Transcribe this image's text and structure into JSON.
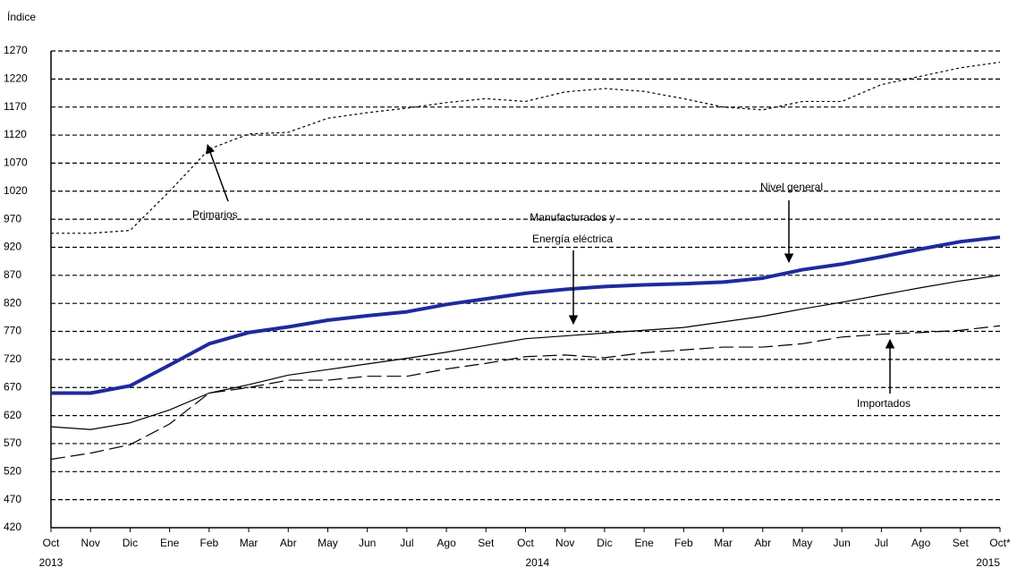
{
  "chart_data": {
    "type": "line",
    "y_label": "Índice",
    "categories": [
      "Oct",
      "Nov",
      "Dic",
      "Ene",
      "Feb",
      "Mar",
      "Abr",
      "May",
      "Jun",
      "Jul",
      "Ago",
      "Set",
      "Oct",
      "Nov",
      "Dic",
      "Ene",
      "Feb",
      "Mar",
      "Abr",
      "May",
      "Jun",
      "Jul",
      "Ago",
      "Set",
      "Oct*"
    ],
    "category_years": [
      "2013",
      null,
      null,
      null,
      null,
      null,
      null,
      null,
      null,
      null,
      null,
      null,
      "2014",
      null,
      null,
      null,
      null,
      null,
      null,
      null,
      null,
      null,
      null,
      null,
      "2015"
    ],
    "ylim": [
      420,
      1270
    ],
    "yticks": [
      420,
      470,
      520,
      570,
      620,
      670,
      720,
      770,
      820,
      870,
      920,
      970,
      1020,
      1070,
      1120,
      1170,
      1220,
      1270
    ],
    "grid": true,
    "series": [
      {
        "color": "#000000",
        "style": "dotted",
        "values": [
          945,
          945,
          950,
          1020,
          1095,
          1122,
          1125,
          1150,
          1160,
          1168,
          1178,
          1185,
          1180,
          1197,
          1203,
          1198,
          1185,
          1170,
          1165,
          1180,
          1180,
          1210,
          1225,
          1240,
          1250
        ]
      },
      {
        "color": "#1f2a9c",
        "style": "thick",
        "values": [
          660,
          660,
          673,
          710,
          748,
          768,
          778,
          790,
          798,
          805,
          818,
          828,
          838,
          845,
          850,
          853,
          855,
          858,
          865,
          880,
          890,
          903,
          917,
          930,
          938
        ]
      },
      {
        "color": "#000000",
        "style": "solid",
        "values": [
          600,
          595,
          607,
          630,
          660,
          675,
          692,
          702,
          712,
          722,
          733,
          745,
          757,
          762,
          767,
          772,
          777,
          787,
          797,
          810,
          822,
          835,
          848,
          860,
          870
        ]
      },
      {
        "color": "#000000",
        "style": "dashed",
        "values": [
          542,
          553,
          568,
          605,
          660,
          670,
          683,
          683,
          690,
          690,
          703,
          713,
          725,
          728,
          723,
          732,
          737,
          742,
          742,
          748,
          760,
          765,
          768,
          772,
          780
        ]
      }
    ],
    "annotations": [
      "Primarios",
      "Manufacturados y",
      "Energía eléctrica",
      "Nivel general",
      "Importados"
    ]
  }
}
